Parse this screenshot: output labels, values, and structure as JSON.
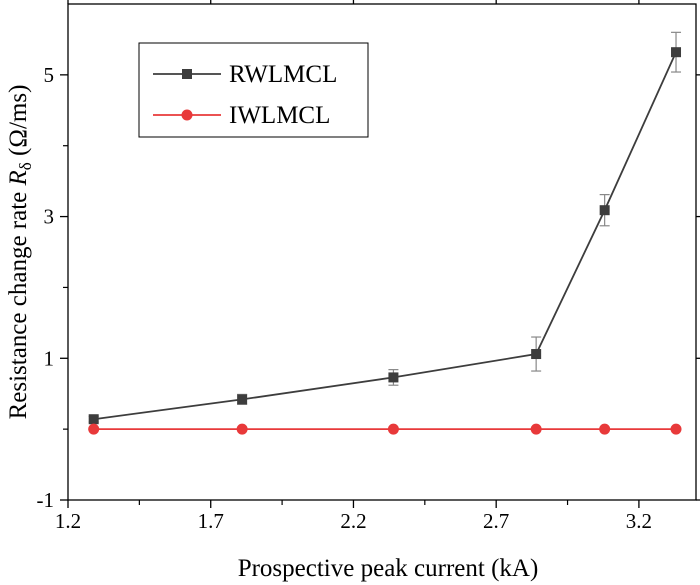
{
  "chart_data": {
    "type": "line",
    "xlabel": "Prospective peak current (kA)",
    "ylabel": {
      "prefix": "Resistance change rate ",
      "symbol": "R",
      "subscript": "δ",
      "unit": " (Ω/ms)"
    },
    "xlim": [
      1.2,
      3.4
    ],
    "ylim": [
      -1,
      6
    ],
    "xticks": [
      1.2,
      1.7,
      2.2,
      2.7,
      3.2
    ],
    "xtick_labels": [
      "1.2",
      "1.7",
      "2.2",
      "2.7",
      "3.2"
    ],
    "yticks": [
      -1,
      1,
      3,
      5
    ],
    "ytick_labels": [
      "-1",
      "1",
      "3",
      "5"
    ],
    "legend_position": "top-left",
    "series": [
      {
        "name": "RWLMCL",
        "color": "#3d3d3d",
        "marker": "square",
        "x": [
          1.29,
          1.81,
          2.34,
          2.84,
          3.08,
          3.33
        ],
        "y": [
          0.14,
          0.42,
          0.73,
          1.06,
          3.09,
          5.32
        ],
        "error": [
          0.04,
          0.07,
          0.11,
          0.24,
          0.22,
          0.28
        ]
      },
      {
        "name": "IWLMCL",
        "color": "#e8393a",
        "marker": "circle",
        "x": [
          1.29,
          1.81,
          2.34,
          2.84,
          3.08,
          3.33
        ],
        "y": [
          0.0,
          0.0,
          0.0,
          0.0,
          0.0,
          0.0
        ]
      }
    ]
  }
}
